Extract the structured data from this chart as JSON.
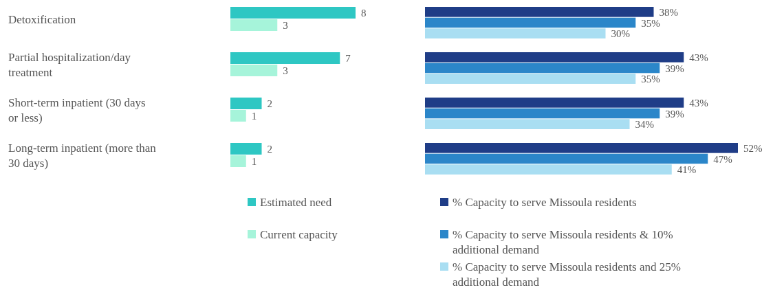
{
  "chart_data": [
    {
      "type": "bar",
      "orientation": "horizontal",
      "categories": [
        "Detoxification",
        "Partial hospitalization/day treatment",
        "Short-term inpatient (30 days or less)",
        "Long-term inpatient (more than 30 days)"
      ],
      "series": [
        {
          "name": "Estimated need",
          "color": "#2ec7c3",
          "values": [
            8,
            7,
            2,
            2
          ]
        },
        {
          "name": "Current capacity",
          "color": "#a6f4da",
          "values": [
            3,
            3,
            1,
            1
          ]
        }
      ],
      "data_labels": true,
      "legend": "bottom",
      "tick_labels": "y"
    },
    {
      "type": "bar",
      "orientation": "horizontal",
      "categories": [
        null,
        null,
        null,
        null
      ],
      "series": [
        {
          "name": "% Capacity to serve Missoula residents",
          "color": "#1f3d87",
          "values": [
            38,
            43,
            43,
            52
          ],
          "value_labels": [
            "38%",
            "43%",
            "43%",
            "52%"
          ]
        },
        {
          "name": "% Capacity to serve Missoula residents & 10% additional demand",
          "color": "#2b86c9",
          "values": [
            35,
            39,
            39,
            47
          ],
          "value_labels": [
            "35%",
            "39%",
            "39%",
            "47%"
          ]
        },
        {
          "name": "% Capacity to serve Missoula residents and 25% additional demand",
          "color": "#a9def2",
          "values": [
            30,
            35,
            34,
            41
          ],
          "value_labels": [
            "30%",
            "35%",
            "34%",
            "41%"
          ]
        }
      ],
      "legend": "bottom"
    }
  ]
}
